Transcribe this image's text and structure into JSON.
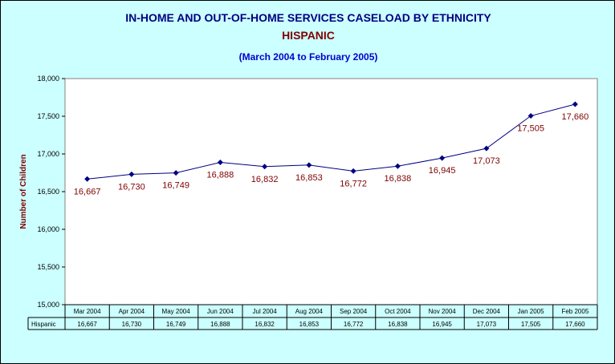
{
  "chart_data": {
    "type": "line",
    "title": "IN-HOME AND OUT-OF-HOME SERVICES CASELOAD BY ETHNICITY",
    "subtitle": "HISPANIC",
    "date_range": "(March 2004 to February 2005)",
    "ylabel": "Number of Children",
    "xlabel": "",
    "ylim": [
      15000,
      18000
    ],
    "yticks": [
      "15,000",
      "15,500",
      "16,000",
      "16,500",
      "17,000",
      "17,500",
      "18,000"
    ],
    "ytick_values": [
      15000,
      15500,
      16000,
      16500,
      17000,
      17500,
      18000
    ],
    "grid": false,
    "categories": [
      "Mar 2004",
      "Apr 2004",
      "May 2004",
      "Jun 2004",
      "Jul 2004",
      "Aug 2004",
      "Sep 2004",
      "Oct 2004",
      "Nov 2004",
      "Dec 2004",
      "Jan 2005",
      "Feb 2005"
    ],
    "series": [
      {
        "name": "Hispanic",
        "values": [
          16667,
          16730,
          16749,
          16888,
          16832,
          16853,
          16772,
          16838,
          16945,
          17073,
          17505,
          17660
        ],
        "labels": [
          "16,667",
          "16,730",
          "16,749",
          "16,888",
          "16,832",
          "16,853",
          "16,772",
          "16,838",
          "16,945",
          "17,073",
          "17,505",
          "17,660"
        ],
        "color": "#000080"
      }
    ],
    "data_table": true
  },
  "colors": {
    "background": "#CCFFFF",
    "plot_area": "#FFFFFF",
    "title": "#000080",
    "subtitle": "#800000",
    "date_range": "#0000CC",
    "data_labels": "#800000",
    "axis_label": "#800000"
  }
}
